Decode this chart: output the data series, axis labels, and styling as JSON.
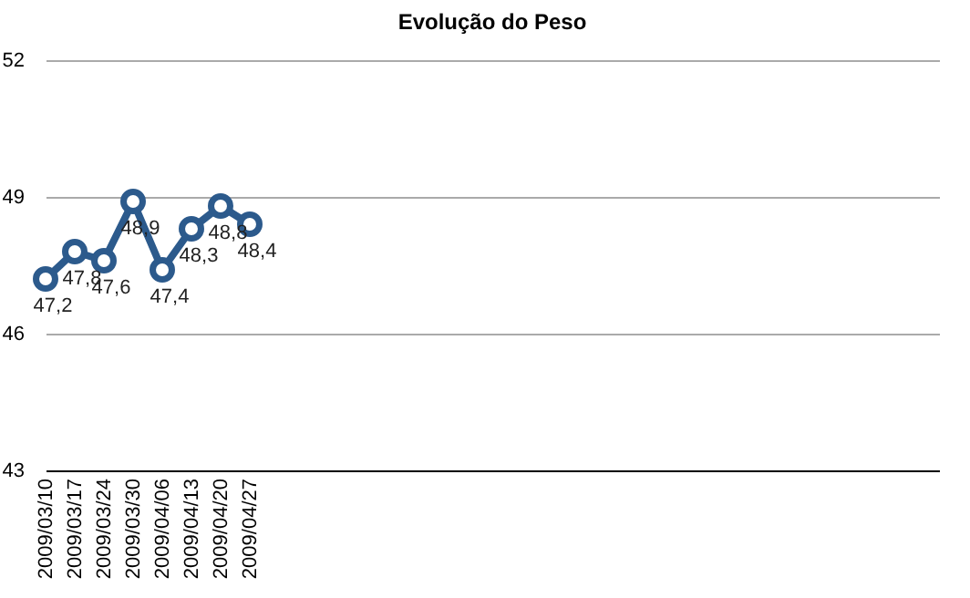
{
  "chart_data": {
    "type": "line",
    "title": "Evolução do Peso",
    "categories": [
      "2009/03/10",
      "2009/03/17",
      "2009/03/24",
      "2009/03/30",
      "2009/04/06",
      "2009/04/13",
      "2009/04/20",
      "2009/04/27"
    ],
    "series": [
      {
        "color": "#2c5a8c",
        "values": [
          47.2,
          47.8,
          47.6,
          48.9,
          47.4,
          48.3,
          48.8,
          48.4
        ],
        "value_labels": [
          "47,2",
          "47,8",
          "47,6",
          "48,9",
          "47,4",
          "48,3",
          "48,8",
          "48,4"
        ]
      }
    ],
    "ylim": [
      43,
      52
    ],
    "yticks": [
      43,
      46,
      49,
      52
    ],
    "grid": "y",
    "marker": "circle",
    "line_style": "solid",
    "legend": false
  }
}
